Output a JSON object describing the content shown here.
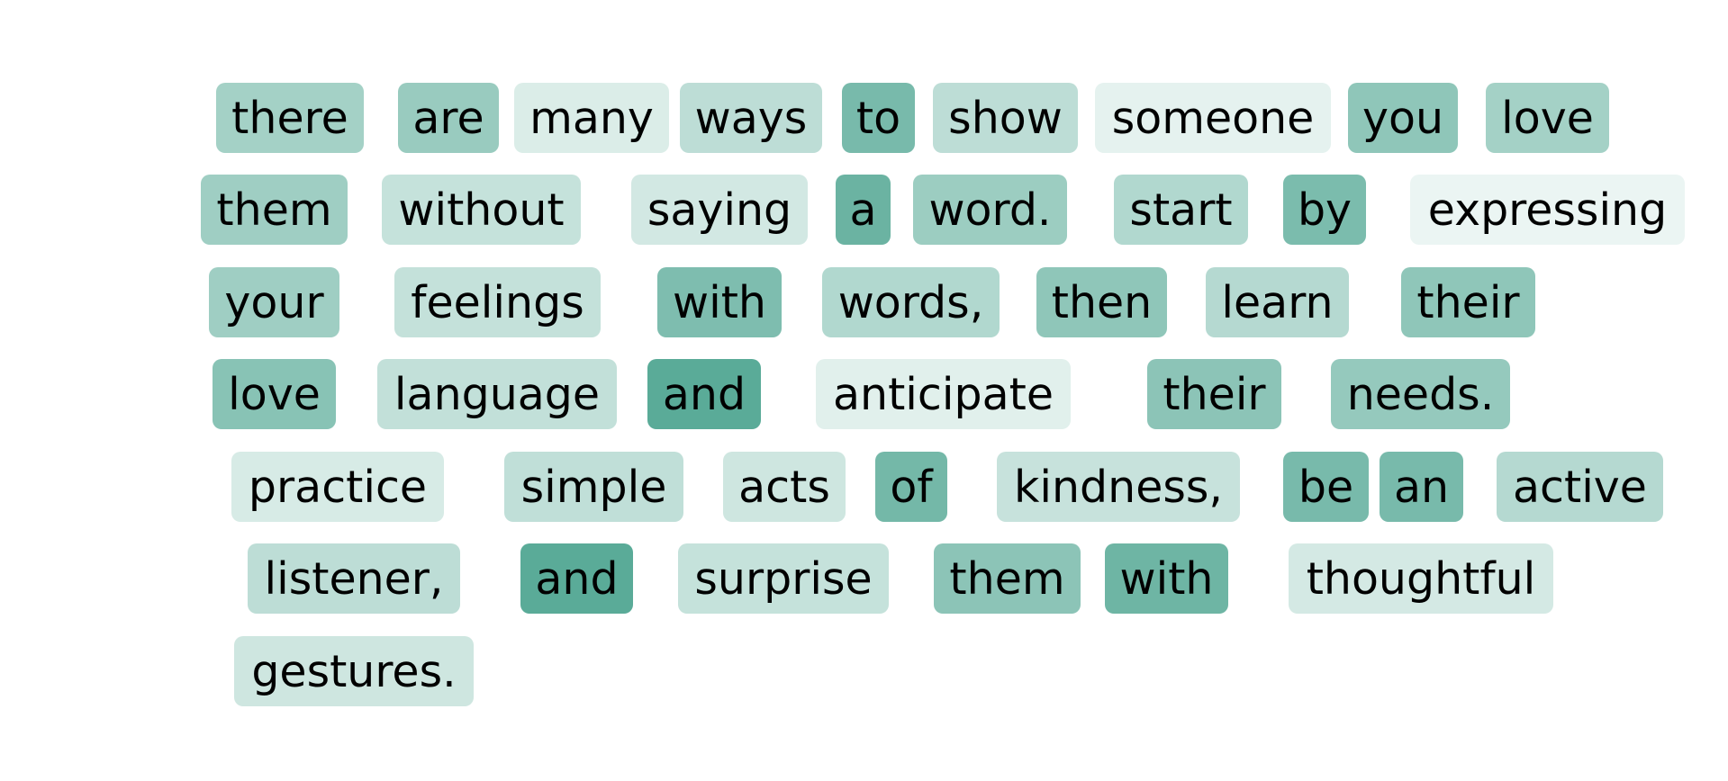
{
  "palette": {
    "base_color": "#5aab98",
    "text_color": "#000000",
    "background": "#ffffff"
  },
  "lines": [
    {
      "tokens": [
        {
          "text": "there",
          "weight": 0.55
        },
        {
          "text": "are",
          "weight": 0.62
        },
        {
          "text": "many",
          "weight": 0.22
        },
        {
          "text": "ways",
          "weight": 0.4
        },
        {
          "text": "to",
          "weight": 0.82
        },
        {
          "text": "show",
          "weight": 0.4
        },
        {
          "text": "someone",
          "weight": 0.16
        },
        {
          "text": "you",
          "weight": 0.68
        },
        {
          "text": "love",
          "weight": 0.55
        }
      ]
    },
    {
      "tokens": [
        {
          "text": "them",
          "weight": 0.58
        },
        {
          "text": "without",
          "weight": 0.35
        },
        {
          "text": "saying",
          "weight": 0.27
        },
        {
          "text": "a",
          "weight": 0.9
        },
        {
          "text": "word.",
          "weight": 0.6
        },
        {
          "text": "start",
          "weight": 0.47
        },
        {
          "text": "by",
          "weight": 0.8
        },
        {
          "text": "expressing",
          "weight": 0.12
        }
      ]
    },
    {
      "tokens": [
        {
          "text": "your",
          "weight": 0.58
        },
        {
          "text": "feelings",
          "weight": 0.36
        },
        {
          "text": "with",
          "weight": 0.78
        },
        {
          "text": "words,",
          "weight": 0.47
        },
        {
          "text": "then",
          "weight": 0.68
        },
        {
          "text": "learn",
          "weight": 0.45
        },
        {
          "text": "their",
          "weight": 0.68
        }
      ]
    },
    {
      "tokens": [
        {
          "text": "love",
          "weight": 0.72
        },
        {
          "text": "language",
          "weight": 0.37
        },
        {
          "text": "and",
          "weight": 1.0
        },
        {
          "text": "anticipate",
          "weight": 0.18
        },
        {
          "text": "their",
          "weight": 0.7
        },
        {
          "text": "needs.",
          "weight": 0.64
        }
      ]
    },
    {
      "tokens": [
        {
          "text": "practice",
          "weight": 0.24
        },
        {
          "text": "simple",
          "weight": 0.38
        },
        {
          "text": "acts",
          "weight": 0.3
        },
        {
          "text": "of",
          "weight": 0.84
        },
        {
          "text": "kindness,",
          "weight": 0.34
        },
        {
          "text": "be",
          "weight": 0.82
        },
        {
          "text": "an",
          "weight": 0.82
        },
        {
          "text": "active",
          "weight": 0.45
        }
      ]
    },
    {
      "tokens": [
        {
          "text": "listener,",
          "weight": 0.4
        },
        {
          "text": "and",
          "weight": 1.0
        },
        {
          "text": "surprise",
          "weight": 0.35
        },
        {
          "text": "them",
          "weight": 0.7
        },
        {
          "text": "with",
          "weight": 0.88
        },
        {
          "text": "thoughtful",
          "weight": 0.26
        }
      ]
    },
    {
      "tokens": [
        {
          "text": "gestures.",
          "weight": 0.3
        }
      ]
    }
  ]
}
